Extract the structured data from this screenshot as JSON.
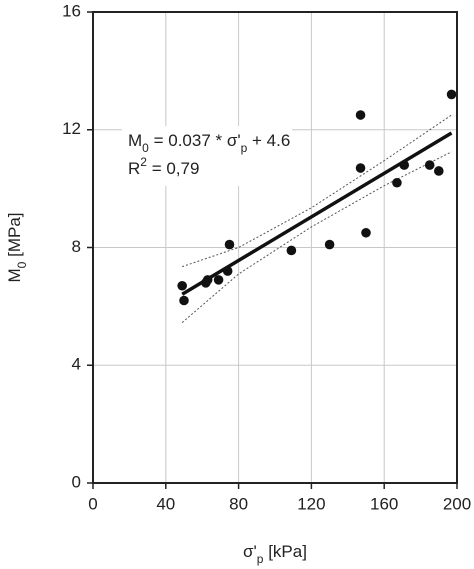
{
  "chart_data": {
    "type": "scatter",
    "xlabel": [
      {
        "text": "σ'"
      },
      {
        "text": "p",
        "sub": true
      },
      {
        "text": " [kPa]"
      }
    ],
    "ylabel": [
      {
        "text": "M"
      },
      {
        "text": "0",
        "sub": true
      },
      {
        "text": " [MPa]"
      }
    ],
    "equation": [
      {
        "text": "M"
      },
      {
        "text": "0",
        "sub": true
      },
      {
        "text": " = 0.037 * σ'"
      },
      {
        "text": "p",
        "sub": true
      },
      {
        "text": " + 4.6"
      }
    ],
    "r2": [
      {
        "text": "R"
      },
      {
        "text": "2",
        "sup": true
      },
      {
        "text": " = 0,79"
      }
    ],
    "x": [
      49,
      50,
      62,
      63,
      69,
      74,
      75,
      109,
      130,
      147,
      147,
      150,
      167,
      171,
      185,
      190,
      197
    ],
    "values": [
      6.7,
      6.2,
      6.8,
      6.9,
      6.9,
      7.2,
      8.1,
      7.9,
      8.1,
      12.5,
      10.7,
      8.5,
      10.2,
      10.8,
      10.8,
      10.6,
      13.2
    ],
    "color": "#111111",
    "fit": {
      "slope": 0.037,
      "intercept": 4.6,
      "x": [
        49,
        197
      ]
    },
    "bands": {
      "x": [
        49,
        80,
        120,
        160,
        197
      ],
      "upper": [
        7.35,
        8.0,
        9.35,
        10.95,
        12.5
      ],
      "lower": [
        5.45,
        7.1,
        8.7,
        10.1,
        11.25
      ]
    },
    "xlim": [
      0,
      200
    ],
    "ylim": [
      0,
      16
    ],
    "xticks": [
      0,
      40,
      80,
      120,
      160,
      200
    ],
    "yticks": [
      0,
      4,
      8,
      12,
      16
    ],
    "grid": true
  }
}
